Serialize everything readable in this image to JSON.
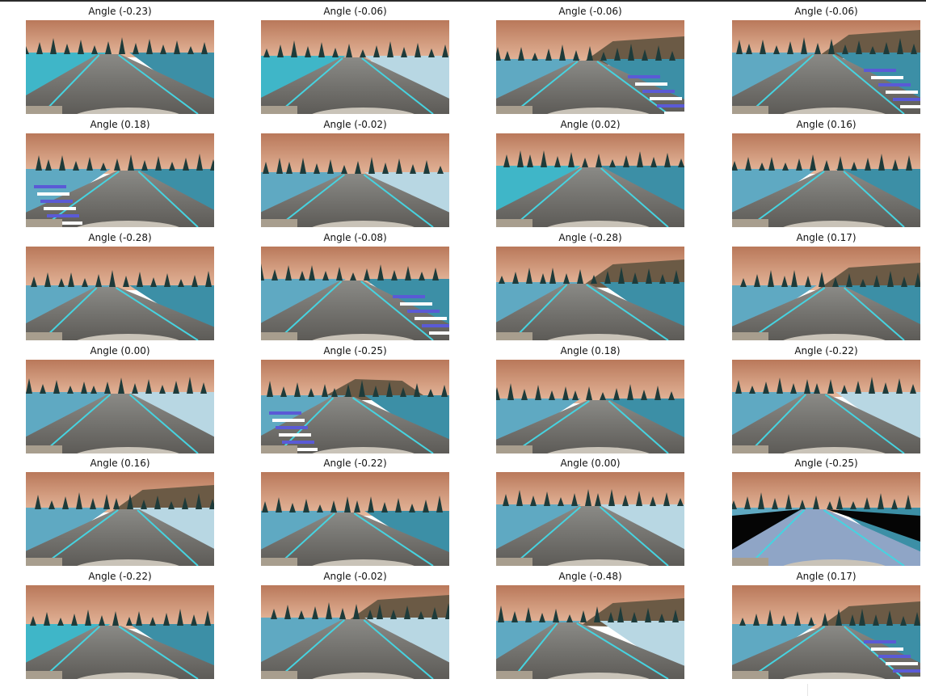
{
  "grid": {
    "caption_prefix": "Angle",
    "frames": [
      {
        "label": "Angle (-0.23)",
        "angle": -0.23,
        "scene": "left-curve-water"
      },
      {
        "label": "Angle (-0.06)",
        "angle": -0.06,
        "scene": "straight-water-snow"
      },
      {
        "label": "Angle (-0.06)",
        "angle": -0.06,
        "scene": "hill-right-striped-curb"
      },
      {
        "label": "Angle (-0.06)",
        "angle": -0.06,
        "scene": "hill-right-striped-curb"
      },
      {
        "label": "Angle (0.18)",
        "angle": 0.18,
        "scene": "striped-curb-left"
      },
      {
        "label": "Angle (-0.02)",
        "angle": -0.02,
        "scene": "straight-snow-right"
      },
      {
        "label": "Angle (0.02)",
        "angle": 0.02,
        "scene": "straight-water-left"
      },
      {
        "label": "Angle (0.16)",
        "angle": 0.16,
        "scene": "bridge-rail-left"
      },
      {
        "label": "Angle (-0.28)",
        "angle": -0.28,
        "scene": "forest-straight"
      },
      {
        "label": "Angle (-0.08)",
        "angle": -0.08,
        "scene": "striped-curb-right"
      },
      {
        "label": "Angle (-0.28)",
        "angle": -0.28,
        "scene": "hill-right-tire-marks"
      },
      {
        "label": "Angle (0.17)",
        "angle": 0.17,
        "scene": "hill-right-barrier"
      },
      {
        "label": "Angle (0.00)",
        "angle": 0.0,
        "scene": "snow-bank-right"
      },
      {
        "label": "Angle (-0.25)",
        "angle": -0.25,
        "scene": "hill-center-striped-curb"
      },
      {
        "label": "Angle (0.18)",
        "angle": 0.18,
        "scene": "fence-posts-right"
      },
      {
        "label": "Angle (-0.22)",
        "angle": -0.22,
        "scene": "snow-rocks-wide"
      },
      {
        "label": "Angle (0.16)",
        "angle": 0.16,
        "scene": "blue-snow-hill-right"
      },
      {
        "label": "Angle (-0.22)",
        "angle": -0.22,
        "scene": "sunset-trees"
      },
      {
        "label": "Angle (0.00)",
        "angle": 0.0,
        "scene": "rocks-left-snow-right"
      },
      {
        "label": "Angle (-0.25)",
        "angle": -0.25,
        "scene": "bridge-deck"
      },
      {
        "label": "Angle (-0.22)",
        "angle": -0.22,
        "scene": "trees-water-straight"
      },
      {
        "label": "Angle (-0.02)",
        "angle": -0.02,
        "scene": "snow-hill-right"
      },
      {
        "label": "Angle (-0.48)",
        "angle": -0.48,
        "scene": "snow-hill-right-sharp"
      },
      {
        "label": "Angle (0.17)",
        "angle": 0.17,
        "scene": "hill-striped-curb-right"
      }
    ]
  }
}
